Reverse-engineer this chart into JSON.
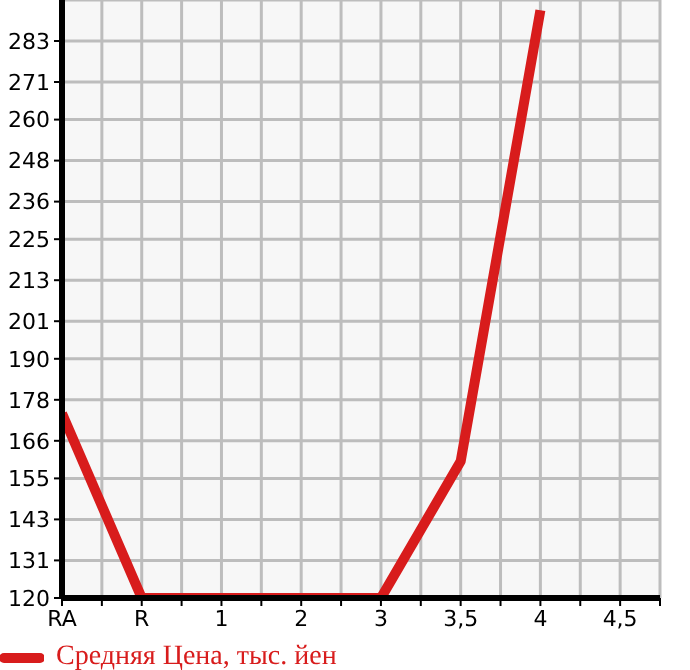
{
  "chart_data": {
    "type": "line",
    "categories": [
      "RA",
      "R",
      "1",
      "2",
      "3",
      "3,5",
      "4",
      "4,5"
    ],
    "series": [
      {
        "name": "Средняя Цена, тыс. йен",
        "color": "#d81c1c",
        "values": [
          174,
          120,
          120,
          120,
          120,
          160,
          292,
          null
        ]
      }
    ],
    "ylim": [
      120,
      295
    ],
    "yticks": [
      120,
      131,
      143,
      155,
      166,
      178,
      190,
      201,
      213,
      225,
      236,
      248,
      260,
      271,
      283
    ],
    "grid": true,
    "legend": "bottom left",
    "marker": "none",
    "line_style": "solid"
  }
}
